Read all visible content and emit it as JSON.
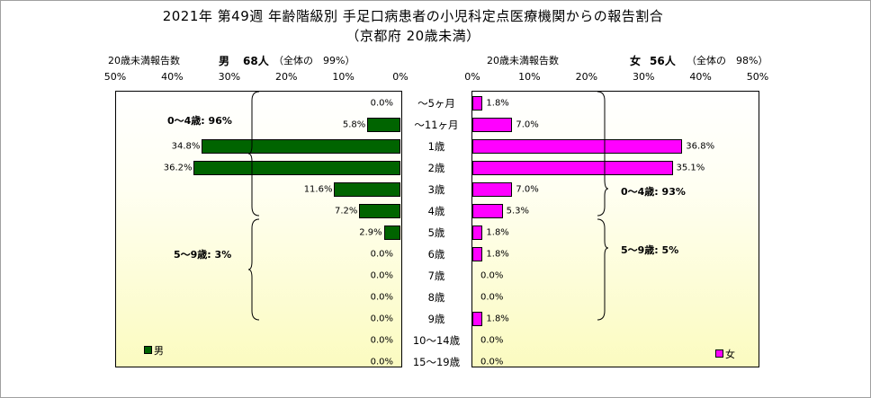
{
  "title_line1": "2021年 第49週 年齢階級別 手足口病患者の小児科定点医療機関からの報告割合",
  "title_line2": "（京都府 20歳未満）",
  "left_panel": {
    "count_label": "20歳未満報告数",
    "sex": "男",
    "count": "68人",
    "share": "（全体の　99%）"
  },
  "right_panel": {
    "count_label": "20歳未満報告数",
    "sex": "女",
    "count": "56人",
    "share": "（全体の　98%）"
  },
  "chart_data": {
    "type": "bar",
    "orientation": "horizontal-butterfly",
    "categories": [
      "～5ヶ月",
      "～11ヶ月",
      "1歳",
      "2歳",
      "3歳",
      "4歳",
      "5歳",
      "6歳",
      "7歳",
      "8歳",
      "9歳",
      "10～14歳",
      "15～19歳"
    ],
    "series": [
      {
        "name": "男",
        "color": "#006400",
        "values": [
          0.0,
          5.8,
          34.8,
          36.2,
          11.6,
          7.2,
          2.9,
          0.0,
          0.0,
          0.0,
          0.0,
          0.0,
          0.0
        ],
        "labels": [
          "0.0%",
          "5.8%",
          "34.8%",
          "36.2%",
          "11.6%",
          "7.2%",
          "2.9%",
          "0.0%",
          "0.0%",
          "0.0%",
          "0.0%",
          "0.0%",
          "0.0%"
        ]
      },
      {
        "name": "女",
        "color": "#ff00ff",
        "values": [
          1.8,
          7.0,
          36.8,
          35.1,
          7.0,
          5.3,
          1.8,
          1.8,
          0.0,
          0.0,
          1.8,
          0.0,
          0.0
        ],
        "labels": [
          "1.8%",
          "7.0%",
          "36.8%",
          "35.1%",
          "7.0%",
          "5.3%",
          "1.8%",
          "1.8%",
          "0.0%",
          "0.0%",
          "1.8%",
          "0.0%",
          "0.0%"
        ]
      }
    ],
    "x_ticks": [
      "50%",
      "40%",
      "30%",
      "20%",
      "10%",
      "0%"
    ],
    "x_ticks_right": [
      "0%",
      "10%",
      "20%",
      "30%",
      "40%",
      "50%"
    ],
    "xlim": [
      0,
      50
    ],
    "group_annotations": {
      "male": [
        "0～4歳: 96%",
        "5～9歳: 3%"
      ],
      "female": [
        "0～4歳: 93%",
        "5～9歳: 5%"
      ]
    },
    "legend": {
      "male": "男",
      "female": "女"
    }
  }
}
